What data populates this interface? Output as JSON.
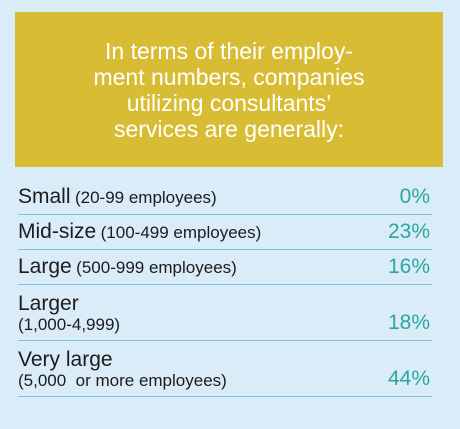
{
  "chart_data": {
    "type": "table",
    "title": "In terms of their employment numbers, companies utilizing consultants’ services are generally:",
    "title_lines": [
      "In terms of their employ-",
      "ment numbers, companies",
      "utilizing consultants’",
      "services are generally:"
    ],
    "rows": [
      {
        "category": "Small",
        "detail": "(20-99 employees)",
        "value": 0,
        "value_label": "0%"
      },
      {
        "category": "Mid-size",
        "detail": "(100-499 employees)",
        "value": 23,
        "value_label": "23%"
      },
      {
        "category": "Large",
        "detail": "(500-999 employees)",
        "value": 16,
        "value_label": "16%"
      },
      {
        "category": "Larger",
        "detail": "(1,000-4,999)",
        "value": 18,
        "value_label": "18%"
      },
      {
        "category": "Very large",
        "detail": "(5,000  or more employees)",
        "value": 44,
        "value_label": "44%"
      }
    ]
  },
  "colors": {
    "background": "#d9ecf8",
    "header_bg": "#d8bd34",
    "header_text": "#ffffff",
    "value_text": "#2aa7a0",
    "divider": "#7fc0e3"
  }
}
